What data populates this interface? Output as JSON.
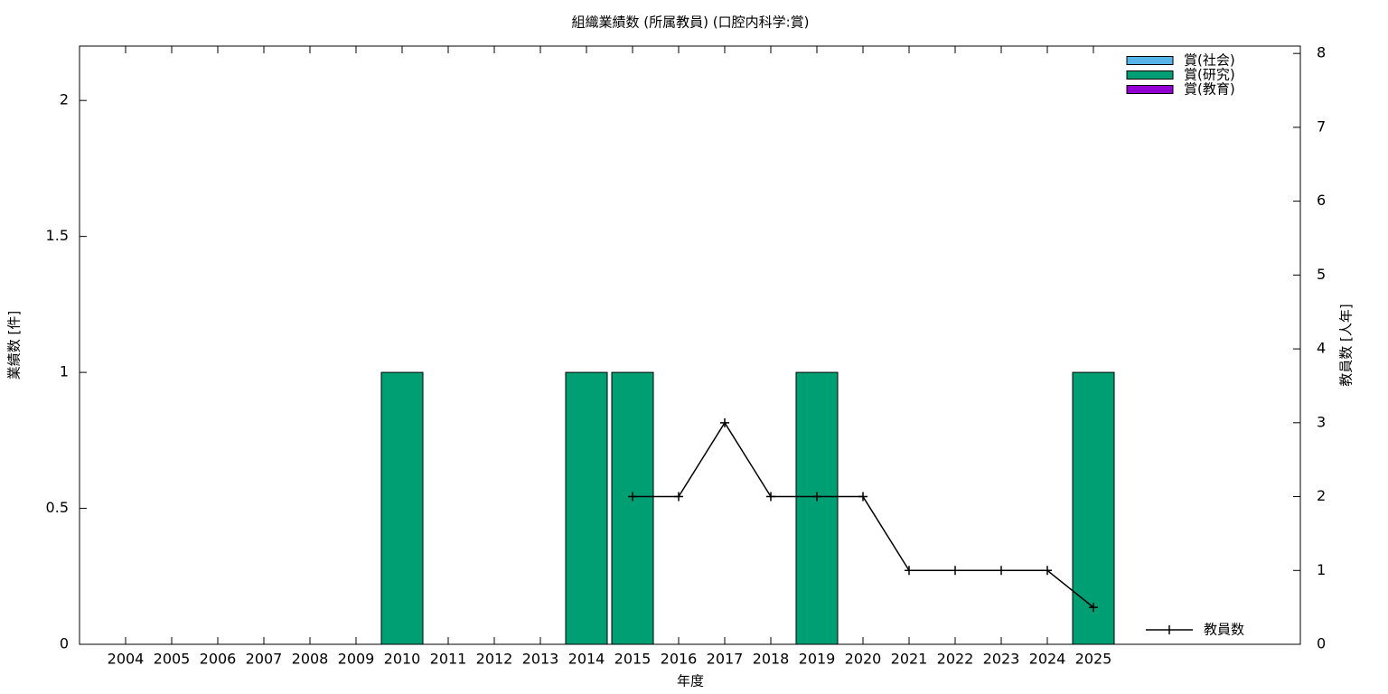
{
  "chart_data": {
    "type": "bar",
    "title": "組織業績数 (所属教員) (口腔内科学:賞)",
    "x_label": "年度",
    "y_label": "業績数 [件]",
    "y2_label": "教員数 [人年]",
    "categories": [
      "2004",
      "2005",
      "2006",
      "2007",
      "2008",
      "2009",
      "2010",
      "2011",
      "2012",
      "2013",
      "2014",
      "2015",
      "2016",
      "2017",
      "2018",
      "2019",
      "2020",
      "2021",
      "2022",
      "2023",
      "2024",
      "2025"
    ],
    "series": [
      {
        "name": "賞(社会)",
        "color": "#56b4e9",
        "values": [
          0,
          0,
          0,
          0,
          0,
          0,
          0,
          0,
          0,
          0,
          0,
          0,
          0,
          0,
          0,
          0,
          0,
          0,
          0,
          0,
          0,
          0
        ]
      },
      {
        "name": "賞(研究)",
        "color": "#009e73",
        "values": [
          0,
          0,
          0,
          0,
          0,
          0,
          1,
          0,
          0,
          0,
          1,
          1,
          0,
          0,
          0,
          1,
          0,
          0,
          0,
          0,
          0,
          1
        ]
      },
      {
        "name": "賞(教育)",
        "color": "#9400d3",
        "values": [
          0,
          0,
          0,
          0,
          0,
          0,
          0,
          0,
          0,
          0,
          0,
          0,
          0,
          0,
          0,
          0,
          0,
          0,
          0,
          0,
          0,
          0
        ]
      },
      {
        "name": "教員数",
        "color": "#000000",
        "type": "line",
        "axis": "y2",
        "values": [
          null,
          null,
          null,
          null,
          null,
          null,
          null,
          null,
          null,
          null,
          null,
          2,
          2,
          3,
          2,
          2,
          2,
          1,
          1,
          1,
          1,
          0.5
        ]
      }
    ],
    "stacked": true,
    "ylim": [
      0,
      2.2
    ],
    "yticks": [
      0,
      0.5,
      1,
      1.5,
      2
    ],
    "y2lim": [
      0,
      8.1
    ],
    "y2ticks": [
      0,
      1,
      2,
      3,
      4,
      5,
      6,
      7,
      8
    ],
    "grid": false
  }
}
